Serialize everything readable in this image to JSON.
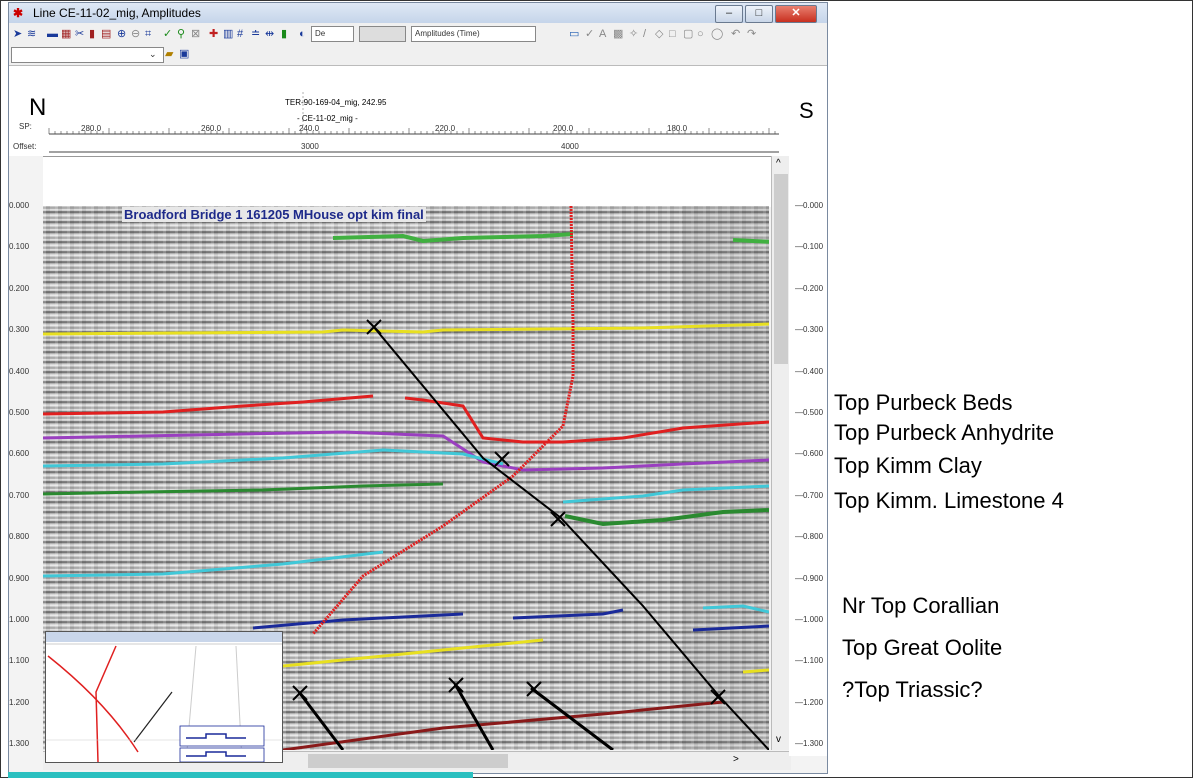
{
  "window": {
    "title": "Line CE-11-02_mig, Amplitudes",
    "minimize_label": "–",
    "maximize_label": "□",
    "close_label": "✕"
  },
  "toolbar": {
    "combo_1": "De",
    "combo_2": "",
    "combo_3": "Amplitudes (Time)"
  },
  "header": {
    "north_label": "N",
    "south_label": "S",
    "crossing_well": "TER-90-169-04_mig, 242.95",
    "line_name": "- CE-11-02_mig -",
    "sp_label": "SP:",
    "offset_label": "Offset:",
    "sp_ticks": [
      "280.0",
      "260.0",
      "240.0",
      "220.0",
      "200.0",
      "180.0"
    ],
    "offset_ticks": [
      "3000",
      "4000"
    ]
  },
  "section": {
    "well_label": "Broadford Bridge 1 161205 MHouse opt kim final"
  },
  "time_axis": [
    "0.000",
    "0.100",
    "0.200",
    "0.300",
    "0.400",
    "0.500",
    "0.600",
    "0.700",
    "0.800",
    "0.900",
    "1.000",
    "1.100",
    "1.200",
    "1.300"
  ],
  "horizons": [
    {
      "label": "Top Purbeck Beds",
      "color": "#e8e020"
    },
    {
      "label": "Top Purbeck Anhydrite",
      "color": "#e02020"
    },
    {
      "label": "Top Kimm Clay",
      "color": "#9a3fc0"
    },
    {
      "label": "Top Kimm. Limestone 4",
      "color": "#40c8d8"
    },
    {
      "label": "Nr Top Corallian",
      "color": "#2a8a30"
    },
    {
      "label": "Top Great Oolite",
      "color": "#1a2a9a"
    },
    {
      "label": "?Top Triassic?",
      "color": "#8a1a1a"
    }
  ],
  "colors": {
    "titlebar": "#c5d5ea",
    "well_trace": "#e02020",
    "fault": "#000000",
    "shallow_marker": "#40b040"
  }
}
